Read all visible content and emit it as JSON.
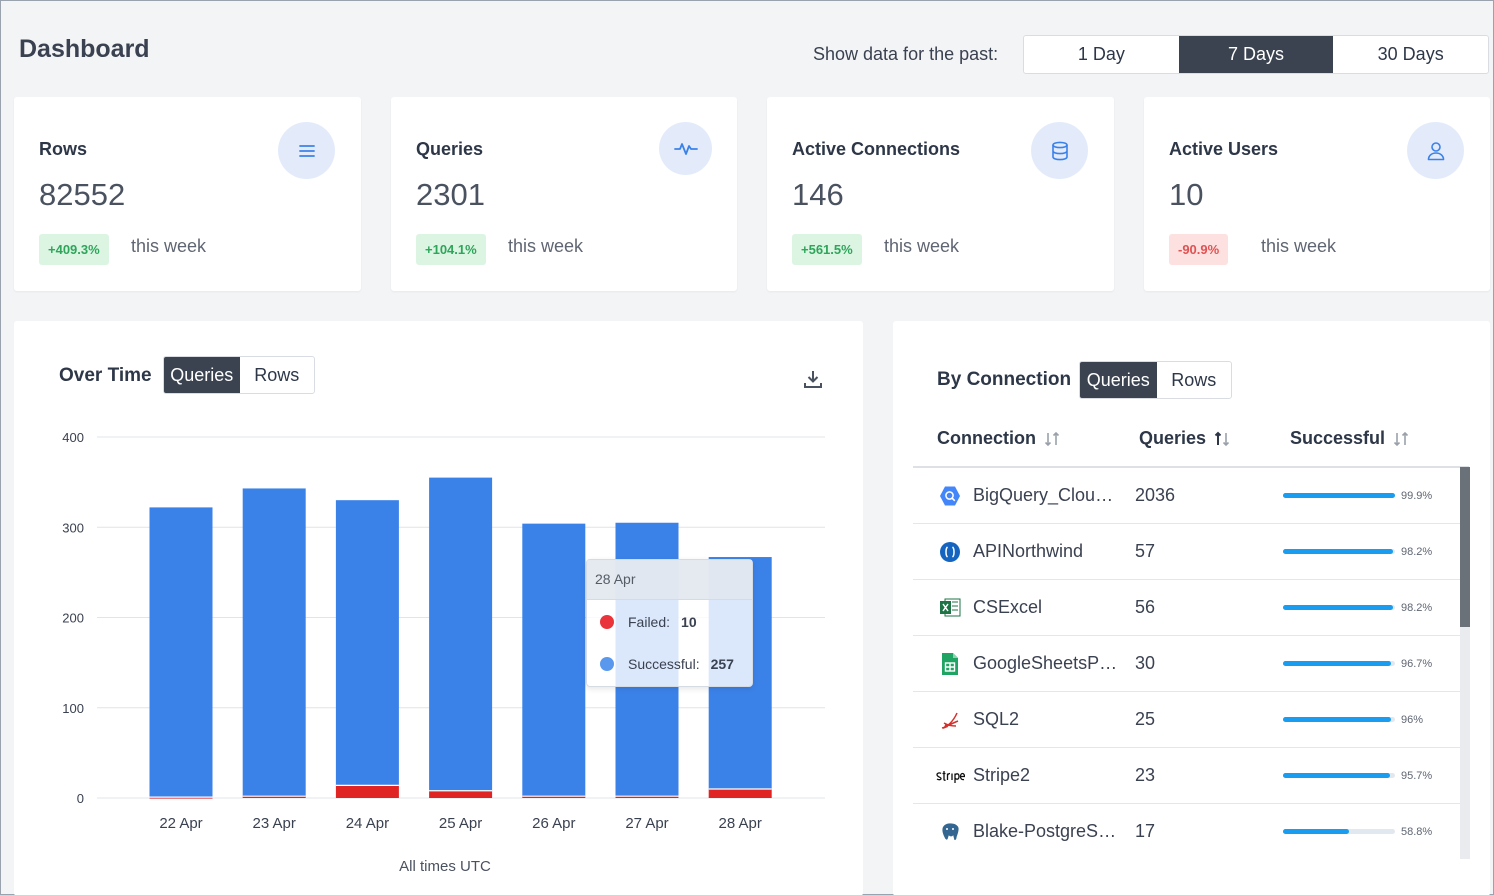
{
  "header": {
    "title": "Dashboard",
    "range_label": "Show data for the past:",
    "range_options": [
      "1 Day",
      "7 Days",
      "30 Days"
    ],
    "range_selected": "7 Days"
  },
  "stats": [
    {
      "label": "Rows",
      "value": "82552",
      "change": "+409.3%",
      "direction": "up",
      "period": "this week",
      "icon": "list-icon"
    },
    {
      "label": "Queries",
      "value": "2301",
      "change": "+104.1%",
      "direction": "up",
      "period": "this week",
      "icon": "pulse-icon"
    },
    {
      "label": "Active Connections",
      "value": "146",
      "change": "+561.5%",
      "direction": "up",
      "period": "this week",
      "icon": "database-icon"
    },
    {
      "label": "Active Users",
      "value": "10",
      "change": "-90.9%",
      "direction": "down",
      "period": "this week",
      "icon": "user-icon"
    }
  ],
  "over_time": {
    "title": "Over Time",
    "toggle": [
      "Queries",
      "Rows"
    ],
    "toggle_selected": "Queries",
    "footer": "All times UTC",
    "tooltip": {
      "date": "28 Apr",
      "failed_label": "Failed:",
      "failed_value": "10",
      "successful_label": "Successful:",
      "successful_value": "257"
    }
  },
  "chart_data": {
    "type": "bar",
    "stacked": true,
    "categories": [
      "22 Apr",
      "23 Apr",
      "24 Apr",
      "25 Apr",
      "26 Apr",
      "27 Apr",
      "28 Apr"
    ],
    "series": [
      {
        "name": "Failed",
        "color": "#e02424",
        "values": [
          1,
          2,
          14,
          8,
          2,
          2,
          10
        ]
      },
      {
        "name": "Successful",
        "color": "#3b82e8",
        "values": [
          321,
          341,
          316,
          347,
          302,
          303,
          257
        ]
      }
    ],
    "ylim": [
      0,
      400
    ],
    "yticks": [
      0,
      100,
      200,
      300,
      400
    ],
    "grid": true
  },
  "by_connection": {
    "title": "By Connection",
    "toggle": [
      "Queries",
      "Rows"
    ],
    "toggle_selected": "Queries",
    "columns": [
      "Connection",
      "Queries",
      "Successful"
    ],
    "rows": [
      {
        "name": "BigQuery_Cloud_...",
        "queries": "2036",
        "success": 0.999,
        "success_label": "99.9%",
        "icon": "bigquery-icon"
      },
      {
        "name": "APINorthwind",
        "queries": "57",
        "success": 0.982,
        "success_label": "98.2%",
        "icon": "api-icon"
      },
      {
        "name": "CSExcel",
        "queries": "56",
        "success": 0.982,
        "success_label": "98.2%",
        "icon": "excel-icon"
      },
      {
        "name": "GoogleSheetsPa...",
        "queries": "30",
        "success": 0.967,
        "success_label": "96.7%",
        "icon": "google-sheets-icon"
      },
      {
        "name": "SQL2",
        "queries": "25",
        "success": 0.96,
        "success_label": "96%",
        "icon": "sql-server-icon"
      },
      {
        "name": "Stripe2",
        "queries": "23",
        "success": 0.957,
        "success_label": "95.7%",
        "icon": "stripe-icon"
      },
      {
        "name": "Blake-PostgreSQ...",
        "queries": "17",
        "success": 0.588,
        "success_label": "58.8%",
        "icon": "postgresql-icon"
      }
    ]
  }
}
